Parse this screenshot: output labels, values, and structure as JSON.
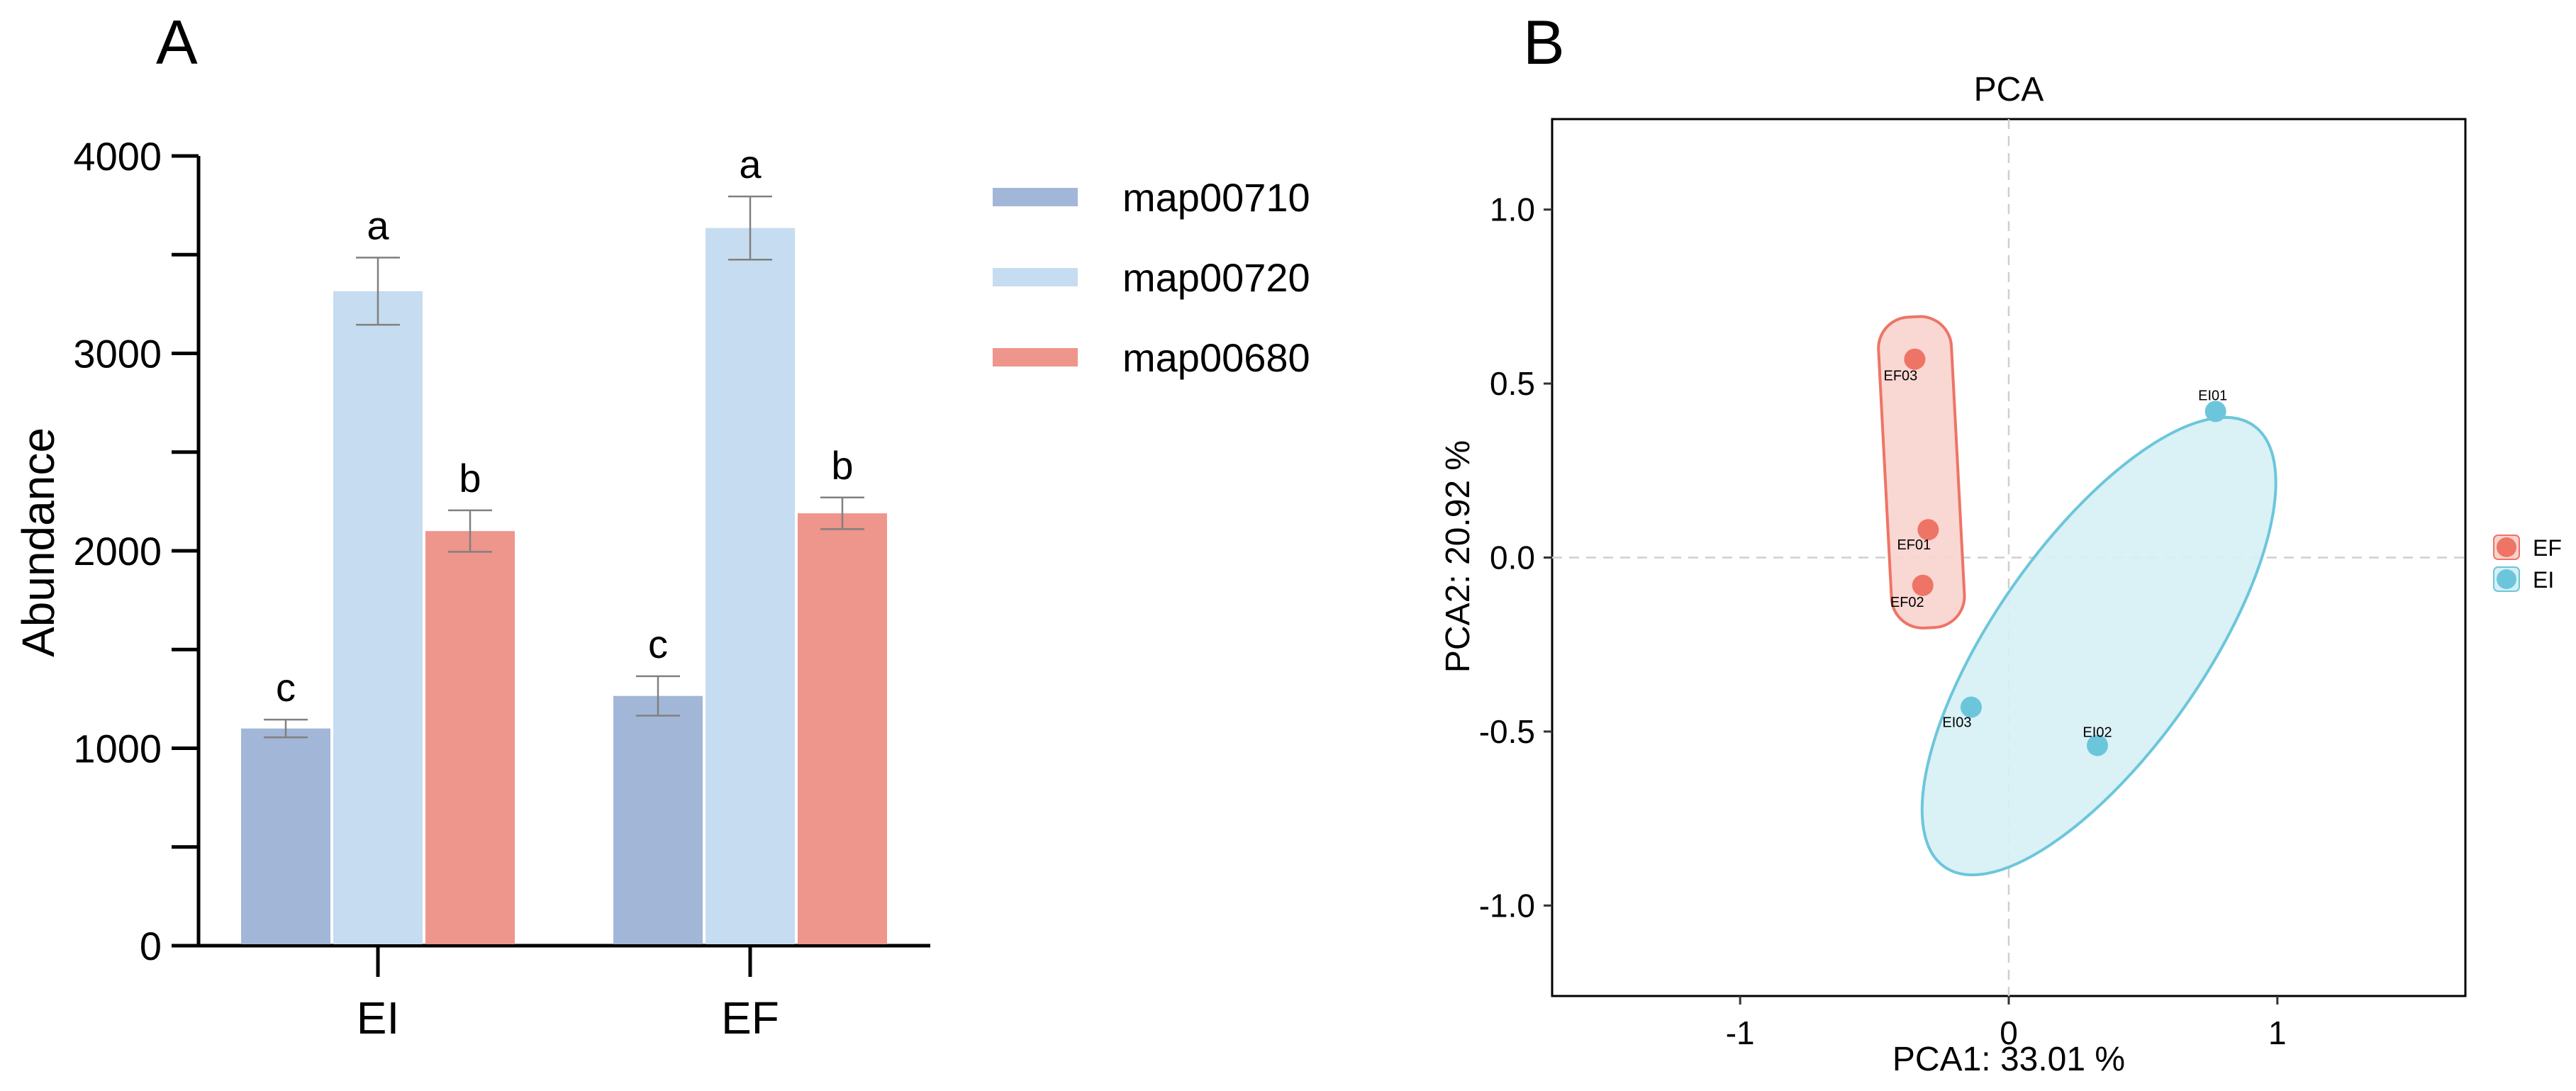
{
  "colors": {
    "map00710": "#a2b6d8",
    "map00720": "#c6dcf0",
    "map00680": "#ee958c",
    "EF_point": "#ee7466",
    "EF_fill": "#f8d3ce",
    "EI_point": "#6cc6db",
    "EI_fill": "#d6eff5",
    "errorbar": "#808080"
  },
  "panels": {
    "a": {
      "label": "A"
    },
    "b": {
      "label": "B"
    }
  },
  "chart_data": [
    {
      "type": "bar",
      "panel": "A",
      "ylabel": "Abundance",
      "xlabel": "",
      "ylim": [
        0,
        4000
      ],
      "yticks": [
        0,
        1000,
        2000,
        3000,
        4000
      ],
      "categories": [
        "EI",
        "EF"
      ],
      "series": [
        {
          "name": "map00710",
          "values": [
            1100,
            1265
          ],
          "errors": [
            45,
            100
          ],
          "letters": [
            "c",
            "c"
          ]
        },
        {
          "name": "map00720",
          "values": [
            3315,
            3635
          ],
          "errors": [
            170,
            160
          ],
          "letters": [
            "a",
            "a"
          ]
        },
        {
          "name": "map00680",
          "values": [
            2100,
            2190
          ],
          "errors": [
            105,
            80
          ],
          "letters": [
            "b",
            "b"
          ]
        }
      ],
      "legend": "right"
    },
    {
      "type": "scatter",
      "panel": "B",
      "title": "PCA",
      "xlabel": "PCA1: 33.01 %",
      "ylabel": "PCA2: 20.92 %",
      "xlim": [
        -1.7,
        1.7
      ],
      "ylim": [
        -1.26,
        1.26
      ],
      "xticks": [
        -1,
        0,
        1
      ],
      "xtick_labels": [
        "-1",
        "0",
        "1"
      ],
      "yticks": [
        1.0,
        0.5,
        0.0,
        -0.5,
        -1.0
      ],
      "ytick_labels": [
        "1.0",
        "0.5",
        "0.0",
        "-0.5",
        "-1.0"
      ],
      "groups": [
        {
          "name": "EF",
          "points": [
            {
              "label": "EF01",
              "x": -0.3,
              "y": 0.08
            },
            {
              "label": "EF02",
              "x": -0.32,
              "y": -0.08
            },
            {
              "label": "EF03",
              "x": -0.35,
              "y": 0.57
            }
          ]
        },
        {
          "name": "EI",
          "points": [
            {
              "label": "EI01",
              "x": 0.77,
              "y": 0.42
            },
            {
              "label": "EI02",
              "x": 0.33,
              "y": -0.54
            },
            {
              "label": "EI03",
              "x": -0.14,
              "y": -0.43
            }
          ]
        }
      ],
      "legend": "right"
    }
  ]
}
